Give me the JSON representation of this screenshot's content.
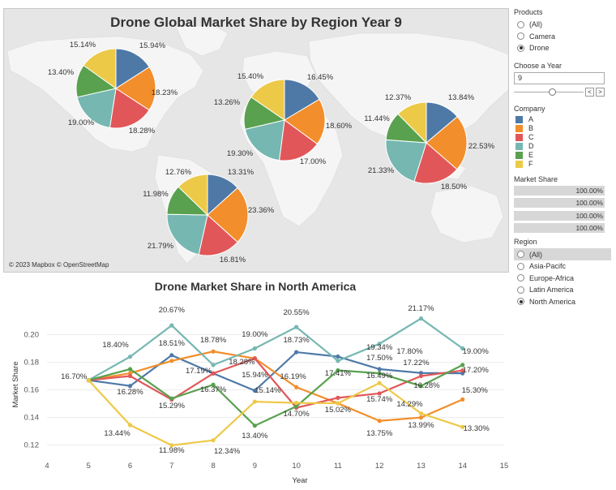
{
  "map": {
    "title": "Drone Global Market Share by Region Year 9",
    "attribution": "© 2023 Mapbox © OpenStreetMap",
    "company_colors": {
      "A": "#4e79a7",
      "B": "#f28e2b",
      "C": "#e15759",
      "D": "#76b7b2",
      "E": "#59a14f",
      "F": "#edc948"
    }
  },
  "line_chart": {
    "title": "Drone Market Share in North America"
  },
  "filters": {
    "products": {
      "label": "Products",
      "options": [
        "(All)",
        "Camera",
        "Drone"
      ],
      "selected": "Drone"
    },
    "year": {
      "label": "Choose a Year",
      "value": "9",
      "prev": "<",
      "next": ">"
    },
    "company": {
      "label": "Company",
      "items": [
        {
          "label": "A",
          "color": "#4e79a7"
        },
        {
          "label": "B",
          "color": "#f28e2b"
        },
        {
          "label": "C",
          "color": "#e15759"
        },
        {
          "label": "D",
          "color": "#76b7b2"
        },
        {
          "label": "E",
          "color": "#59a14f"
        },
        {
          "label": "F",
          "color": "#edc948"
        }
      ]
    },
    "market_share": {
      "label": "Market Share",
      "values": [
        "100.00%",
        "100.00%",
        "100.00%",
        "100.00%"
      ]
    },
    "region": {
      "label": "Region",
      "options": [
        "(All)",
        "Asia-Pacifc",
        "Europe-Africa",
        "Latin America",
        "North America"
      ],
      "selected": "North America"
    }
  },
  "chart_data": [
    {
      "type": "pie",
      "title": "Drone Global Market Share by Region Year 9",
      "categories": [
        "A",
        "B",
        "C",
        "D",
        "E",
        "F"
      ],
      "series": [
        {
          "values": [
            15.94,
            18.23,
            18.28,
            19.0,
            13.4,
            15.14
          ],
          "labels": [
            "15.94%",
            "18.23%",
            "18.28%",
            "19.00%",
            "13.40%",
            "15.14%"
          ]
        },
        {
          "values": [
            16.45,
            18.6,
            17.0,
            19.3,
            13.26,
            15.4
          ],
          "labels": [
            "16.45%",
            "18.60%",
            "17.00%",
            "19.30%",
            "13.26%",
            "15.40%"
          ]
        },
        {
          "values": [
            13.84,
            22.53,
            18.5,
            21.33,
            11.44,
            12.37
          ],
          "labels": [
            "13.84%",
            "22.53%",
            "18.50%",
            "21.33%",
            "11.44%",
            "12.37%"
          ]
        },
        {
          "values": [
            13.31,
            23.36,
            16.81,
            21.79,
            11.98,
            12.76
          ],
          "labels": [
            "13.31%",
            "23.36%",
            "16.81%",
            "21.79%",
            "11.98%",
            "12.76%"
          ]
        }
      ]
    },
    {
      "type": "line",
      "title": "Drone Market Share in North America",
      "xlabel": "Year",
      "ylabel": "Market Share",
      "x": [
        5,
        6,
        7,
        8,
        9,
        10,
        11,
        12,
        13,
        14
      ],
      "xlim": [
        4,
        15
      ],
      "ylim": [
        0.115,
        0.215
      ],
      "x_ticks": [
        "4",
        "5",
        "6",
        "7",
        "8",
        "9",
        "10",
        "11",
        "12",
        "13",
        "14",
        "15"
      ],
      "y_ticks": [
        "0.12",
        "0.14",
        "0.16",
        "0.18",
        "0.20"
      ],
      "grid": true,
      "series": [
        {
          "name": "A",
          "values": [
            0.167,
            0.1628,
            0.1851,
            0.1719,
            0.1594,
            0.1873,
            0.1841,
            0.175,
            0.1722,
            0.172
          ]
        },
        {
          "name": "B",
          "values": [
            0.167,
            0.172,
            0.181,
            0.1878,
            0.1828,
            0.1619,
            0.1502,
            0.1375,
            0.1399,
            0.153
          ]
        },
        {
          "name": "C",
          "values": [
            0.167,
            0.17,
            0.1529,
            0.1719,
            0.1828,
            0.147,
            0.1542,
            0.1574,
            0.17,
            0.174
          ]
        },
        {
          "name": "D",
          "values": [
            0.167,
            0.184,
            0.2067,
            0.178,
            0.19,
            0.2055,
            0.181,
            0.1934,
            0.2117,
            0.19
          ]
        },
        {
          "name": "E",
          "values": [
            0.167,
            0.175,
            0.1537,
            0.1637,
            0.134,
            0.148,
            0.1741,
            0.172,
            0.1628,
            0.178
          ]
        },
        {
          "name": "F",
          "values": [
            0.167,
            0.1344,
            0.1198,
            0.1234,
            0.1514,
            0.1505,
            0.1502,
            0.1649,
            0.1429,
            0.133
          ]
        }
      ],
      "data_labels": [
        {
          "x": 5,
          "text": "16.70%"
        },
        {
          "x": 6,
          "text": "18.40%"
        },
        {
          "x": 6,
          "text": "16.28%"
        },
        {
          "x": 6,
          "text": "13.44%"
        },
        {
          "x": 7,
          "text": "20.67%"
        },
        {
          "x": 7,
          "text": "18.51%"
        },
        {
          "x": 7,
          "text": "15.29%"
        },
        {
          "x": 7,
          "text": "11.98%"
        },
        {
          "x": 8,
          "text": "18.78%"
        },
        {
          "x": 8,
          "text": "17.19%"
        },
        {
          "x": 8,
          "text": "16.37%"
        },
        {
          "x": 8,
          "text": "12.34%"
        },
        {
          "x": 9,
          "text": "19.00%"
        },
        {
          "x": 9,
          "text": "18.28%"
        },
        {
          "x": 9,
          "text": "15.94%"
        },
        {
          "x": 9,
          "text": "15.14%"
        },
        {
          "x": 9,
          "text": "13.40%"
        },
        {
          "x": 10,
          "text": "20.55%"
        },
        {
          "x": 10,
          "text": "18.73%"
        },
        {
          "x": 10,
          "text": "16.19%"
        },
        {
          "x": 10,
          "text": "14.70%"
        },
        {
          "x": 11,
          "text": "17.41%"
        },
        {
          "x": 11,
          "text": "15.02%"
        },
        {
          "x": 12,
          "text": "19.34%"
        },
        {
          "x": 12,
          "text": "17.50%"
        },
        {
          "x": 12,
          "text": "16.49%"
        },
        {
          "x": 12,
          "text": "15.74%"
        },
        {
          "x": 12,
          "text": "13.75%"
        },
        {
          "x": 13,
          "text": "21.17%"
        },
        {
          "x": 13,
          "text": "17.22%"
        },
        {
          "x": 13,
          "text": "16.28%"
        },
        {
          "x": 13,
          "text": "14.29%"
        },
        {
          "x": 13,
          "text": "13.99%"
        },
        {
          "x": 13,
          "text": "17.80%"
        },
        {
          "x": 14,
          "text": "19.00%"
        },
        {
          "x": 14,
          "text": "17.20%"
        },
        {
          "x": 14,
          "text": "15.30%"
        },
        {
          "x": 14,
          "text": "13.30%"
        }
      ]
    }
  ]
}
